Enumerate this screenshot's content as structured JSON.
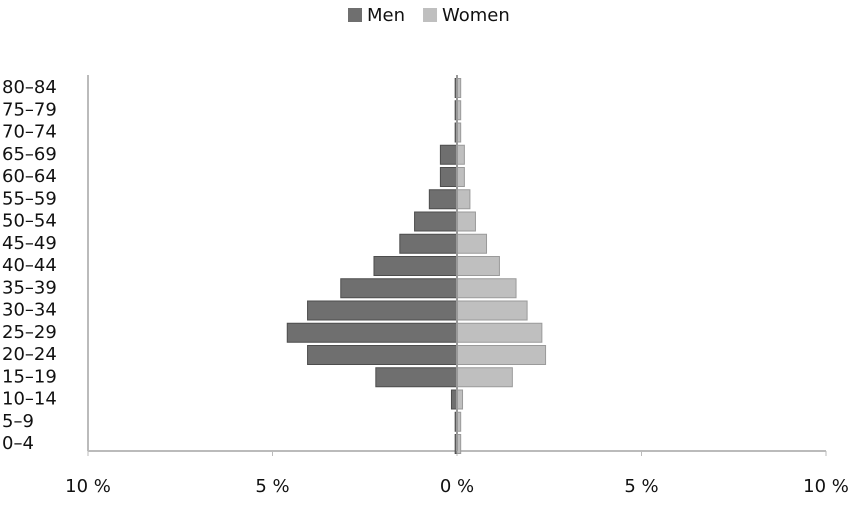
{
  "chart_data": {
    "type": "pyramid",
    "categories": [
      "0–4",
      "5–9",
      "10–14",
      "15–19",
      "20–24",
      "25–29",
      "30–34",
      "35–39",
      "40–44",
      "45–49",
      "50–54",
      "55–59",
      "60–64",
      "65–69",
      "70–74",
      "75–79",
      "80–84"
    ],
    "series": [
      {
        "name": "Men",
        "color": "#6f6f6f",
        "values": [
          -0.05,
          -0.05,
          -0.15,
          -2.2,
          -4.05,
          -4.6,
          -4.05,
          -3.15,
          -2.25,
          -1.55,
          -1.15,
          -0.75,
          -0.45,
          -0.45,
          -0.05,
          -0.05,
          -0.05
        ]
      },
      {
        "name": "Women",
        "color": "#bfbfbf",
        "values": [
          0.1,
          0.1,
          0.15,
          1.5,
          2.4,
          2.3,
          1.9,
          1.6,
          1.15,
          0.8,
          0.5,
          0.35,
          0.2,
          0.2,
          0.1,
          0.1,
          0.1
        ]
      }
    ],
    "xlim": [
      -10,
      10
    ],
    "xticks": [
      {
        "value": -10,
        "label": "10 %"
      },
      {
        "value": -5,
        "label": "5 %"
      },
      {
        "value": 0,
        "label": "0 %"
      },
      {
        "value": 5,
        "label": "5 %"
      },
      {
        "value": 10,
        "label": "10 %"
      }
    ],
    "legend": "top"
  }
}
